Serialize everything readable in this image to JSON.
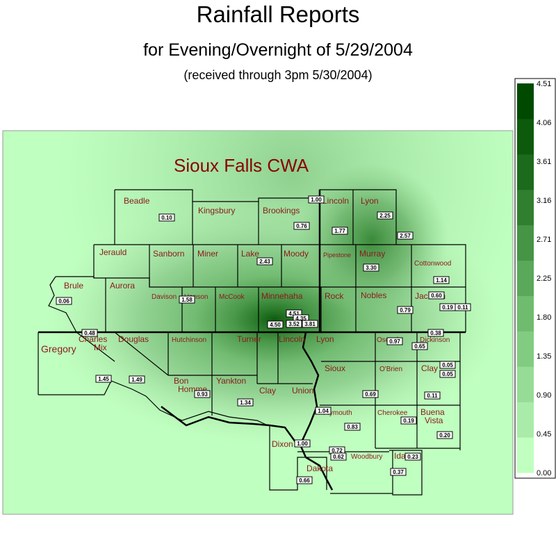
{
  "title": "Rainfall Reports",
  "subtitle": "for Evening/Overnight of 5/29/2004",
  "note": "(received through 3pm 5/30/2004)",
  "map_label": "Sioux Falls CWA",
  "colors": {
    "background": "#bfffbf",
    "county_label": "#8b1a1a",
    "map_label": "#8b0000",
    "legend_scale": [
      "#c0ffc0",
      "#a9eba9",
      "#96dc96",
      "#82cc82",
      "#6fbc6f",
      "#5aa85a",
      "#459545",
      "#2f7f2f",
      "#1c6a1c",
      "#0d5a0d",
      "#004a00"
    ]
  },
  "legend": {
    "ticks": [
      "4.51",
      "4.06",
      "3.61",
      "3.16",
      "2.71",
      "2.25",
      "1.80",
      "1.35",
      "0.90",
      "0.45",
      "0.00"
    ]
  },
  "counties": [
    {
      "name": "Beadle"
    },
    {
      "name": "Kingsbury"
    },
    {
      "name": "Brookings"
    },
    {
      "name": "Lincoln"
    },
    {
      "name": "Lyon"
    },
    {
      "name": "Jerauld"
    },
    {
      "name": "Sanborn"
    },
    {
      "name": "Miner"
    },
    {
      "name": "Lake"
    },
    {
      "name": "Moody"
    },
    {
      "name": "Pipestone"
    },
    {
      "name": "Murray"
    },
    {
      "name": "Cottonwood"
    },
    {
      "name": "Brule"
    },
    {
      "name": "Aurora"
    },
    {
      "name": "Davison"
    },
    {
      "name": "Hanson"
    },
    {
      "name": "McCook"
    },
    {
      "name": "Minnehaha"
    },
    {
      "name": "Rock"
    },
    {
      "name": "Nobles"
    },
    {
      "name": "Jackson"
    },
    {
      "name": "Gregory"
    },
    {
      "name": "Charles Mix"
    },
    {
      "name": "Douglas"
    },
    {
      "name": "Hutchinson"
    },
    {
      "name": "Turner"
    },
    {
      "name": "Lincoln"
    },
    {
      "name": "Lyon"
    },
    {
      "name": "Osceola"
    },
    {
      "name": "Dickinson"
    },
    {
      "name": "Bon Homme"
    },
    {
      "name": "Yankton"
    },
    {
      "name": "Clay"
    },
    {
      "name": "Union"
    },
    {
      "name": "Sioux"
    },
    {
      "name": "O'Brien"
    },
    {
      "name": "Clay"
    },
    {
      "name": "Plymouth"
    },
    {
      "name": "Cherokee"
    },
    {
      "name": "Buena Vista"
    },
    {
      "name": "Dixon"
    },
    {
      "name": "Dakota"
    },
    {
      "name": "Woodbury"
    },
    {
      "name": "Ida"
    }
  ],
  "reports": [
    {
      "value": "1.00"
    },
    {
      "value": "0.10"
    },
    {
      "value": "0.76"
    },
    {
      "value": "1.77"
    },
    {
      "value": "2.25"
    },
    {
      "value": "2.57"
    },
    {
      "value": "2.43"
    },
    {
      "value": "3.30"
    },
    {
      "value": "1.14"
    },
    {
      "value": "0.06"
    },
    {
      "value": "1.58"
    },
    {
      "value": "0.60"
    },
    {
      "value": "0.19"
    },
    {
      "value": "0.11"
    },
    {
      "value": "0.79"
    },
    {
      "value": "4.51"
    },
    {
      "value": "4.35"
    },
    {
      "value": "4.50"
    },
    {
      "value": "3.52"
    },
    {
      "value": "3.81"
    },
    {
      "value": "0.48"
    },
    {
      "value": "0.38"
    },
    {
      "value": "0.97"
    },
    {
      "value": "0.65"
    },
    {
      "value": "1.45"
    },
    {
      "value": "1.49"
    },
    {
      "value": "0.05"
    },
    {
      "value": "0.05"
    },
    {
      "value": "0.93"
    },
    {
      "value": "1.34"
    },
    {
      "value": "0.69"
    },
    {
      "value": "0.11"
    },
    {
      "value": "1.04"
    },
    {
      "value": "0.83"
    },
    {
      "value": "0.19"
    },
    {
      "value": "0.20"
    },
    {
      "value": "1.00"
    },
    {
      "value": "0.72"
    },
    {
      "value": "0.62"
    },
    {
      "value": "0.23"
    },
    {
      "value": "0.37"
    },
    {
      "value": "0.66"
    }
  ]
}
